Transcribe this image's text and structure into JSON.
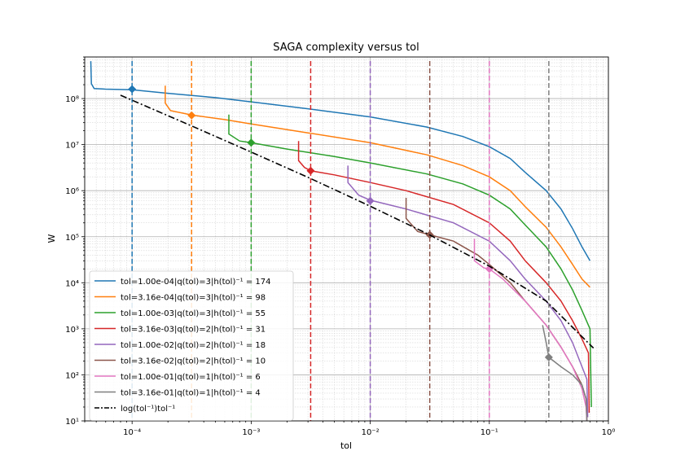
{
  "chart_data": {
    "type": "line",
    "title": "SAGA complexity versus tol",
    "xlabel": "tol",
    "ylabel": "W",
    "xscale": "log",
    "yscale": "log",
    "xlim": [
      4e-05,
      1
    ],
    "ylim": [
      10,
      800000000
    ],
    "grid": true,
    "legend_position": "lower-left",
    "x_tick_labels": [
      {
        "value": 0.0001,
        "label": "10⁻⁴"
      },
      {
        "value": 0.001,
        "label": "10⁻³"
      },
      {
        "value": 0.01,
        "label": "10⁻²"
      },
      {
        "value": 0.1,
        "label": "10⁻¹"
      },
      {
        "value": 1,
        "label": "10⁰"
      }
    ],
    "y_tick_labels": [
      {
        "value": 10,
        "label": "10¹"
      },
      {
        "value": 100,
        "label": "10²"
      },
      {
        "value": 1000,
        "label": "10³"
      },
      {
        "value": 10000,
        "label": "10⁴"
      },
      {
        "value": 100000,
        "label": "10⁵"
      },
      {
        "value": 1000000,
        "label": "10⁶"
      },
      {
        "value": 10000000,
        "label": "10⁷"
      },
      {
        "value": 100000000,
        "label": "10⁸"
      }
    ],
    "series": [
      {
        "name": "tol=1.00e-04|q(tol)=3|h(tol)^-1=174",
        "color": "#1f77b4",
        "tol": 0.0001,
        "marker_y": 160000000,
        "points": [
          [
            4.5e-05,
            650000000
          ],
          [
            4.55e-05,
            210000000
          ],
          [
            4.8e-05,
            165000000
          ],
          [
            6e-05,
            160000000
          ],
          [
            0.0001,
            155000000
          ],
          [
            0.0002,
            130000000
          ],
          [
            0.0005,
            105000000
          ],
          [
            0.001,
            85000000
          ],
          [
            0.003,
            60000000
          ],
          [
            0.01,
            40000000
          ],
          [
            0.03,
            24000000
          ],
          [
            0.06,
            15000000
          ],
          [
            0.1,
            9000000
          ],
          [
            0.15,
            5000000
          ],
          [
            0.2,
            2500000
          ],
          [
            0.3,
            1000000
          ],
          [
            0.4,
            400000
          ],
          [
            0.5,
            150000
          ],
          [
            0.6,
            60000
          ],
          [
            0.7,
            30000
          ]
        ]
      },
      {
        "name": "tol=3.16e-04|q(tol)=3|h(tol)^-1=98",
        "color": "#ff7f0e",
        "tol": 0.000316,
        "marker_y": 43000000,
        "points": [
          [
            0.00019,
            190000000
          ],
          [
            0.00019,
            80000000
          ],
          [
            0.00021,
            55000000
          ],
          [
            0.000316,
            44000000
          ],
          [
            0.0006,
            35000000
          ],
          [
            0.001,
            28000000
          ],
          [
            0.003,
            18000000
          ],
          [
            0.01,
            11000000
          ],
          [
            0.03,
            6000000
          ],
          [
            0.06,
            3500000
          ],
          [
            0.1,
            2000000
          ],
          [
            0.15,
            1000000
          ],
          [
            0.2,
            450000
          ],
          [
            0.3,
            160000
          ],
          [
            0.4,
            60000
          ],
          [
            0.5,
            25000
          ],
          [
            0.6,
            12000
          ],
          [
            0.7,
            8000
          ]
        ]
      },
      {
        "name": "tol=1.00e-03|q(tol)=3|h(tol)^-1=55",
        "color": "#2ca02c",
        "tol": 0.001,
        "marker_y": 11000000,
        "points": [
          [
            0.00065,
            45000000
          ],
          [
            0.00065,
            17000000
          ],
          [
            0.0008,
            12000000
          ],
          [
            0.001,
            11000000
          ],
          [
            0.002,
            8000000
          ],
          [
            0.005,
            5500000
          ],
          [
            0.01,
            4000000
          ],
          [
            0.03,
            2300000
          ],
          [
            0.06,
            1400000
          ],
          [
            0.1,
            800000
          ],
          [
            0.15,
            400000
          ],
          [
            0.2,
            180000
          ],
          [
            0.3,
            60000
          ],
          [
            0.4,
            20000
          ],
          [
            0.5,
            7000
          ],
          [
            0.6,
            2500
          ],
          [
            0.7,
            1000
          ],
          [
            0.72,
            20
          ]
        ]
      },
      {
        "name": "tol=3.16e-03|q(tol)=2|h(tol)^-1=31",
        "color": "#d62728",
        "tol": 0.00316,
        "marker_y": 2700000,
        "points": [
          [
            0.0025,
            12000000
          ],
          [
            0.0025,
            4500000
          ],
          [
            0.0028,
            3200000
          ],
          [
            0.00316,
            2700000
          ],
          [
            0.005,
            2200000
          ],
          [
            0.01,
            1500000
          ],
          [
            0.02,
            1000000
          ],
          [
            0.05,
            500000
          ],
          [
            0.1,
            200000
          ],
          [
            0.15,
            80000
          ],
          [
            0.2,
            30000
          ],
          [
            0.3,
            10000
          ],
          [
            0.4,
            4000
          ],
          [
            0.5,
            1500
          ],
          [
            0.6,
            600
          ],
          [
            0.68,
            300
          ],
          [
            0.69,
            15
          ]
        ]
      },
      {
        "name": "tol=1.00e-02|q(tol)=2|h(tol)^-1=18",
        "color": "#9467bd",
        "tol": 0.01,
        "marker_y": 600000,
        "points": [
          [
            0.0065,
            3500000
          ],
          [
            0.0065,
            1500000
          ],
          [
            0.008,
            800000
          ],
          [
            0.01,
            620000
          ],
          [
            0.02,
            400000
          ],
          [
            0.05,
            200000
          ],
          [
            0.1,
            80000
          ],
          [
            0.15,
            30000
          ],
          [
            0.2,
            12000
          ],
          [
            0.3,
            4000
          ],
          [
            0.4,
            1500
          ],
          [
            0.5,
            500
          ],
          [
            0.6,
            150
          ],
          [
            0.66,
            80
          ],
          [
            0.67,
            12
          ]
        ]
      },
      {
        "name": "tol=3.16e-02|q(tol)=2|h(tol)^-1=10",
        "color": "#8c564b",
        "tol": 0.0316,
        "marker_y": 110000,
        "points": [
          [
            0.02,
            700000
          ],
          [
            0.02,
            250000
          ],
          [
            0.025,
            130000
          ],
          [
            0.0316,
            110000
          ],
          [
            0.05,
            80000
          ],
          [
            0.08,
            40000
          ],
          [
            0.1,
            25000
          ],
          [
            0.15,
            10000
          ],
          [
            0.2,
            4000
          ],
          [
            0.3,
            1200
          ],
          [
            0.4,
            400
          ],
          [
            0.5,
            150
          ],
          [
            0.6,
            60
          ],
          [
            0.65,
            30
          ],
          [
            0.66,
            10
          ]
        ]
      },
      {
        "name": "tol=1.00e-01|q(tol)=1|h(tol)^-1=6",
        "color": "#e377c2",
        "tol": 0.1,
        "marker_y": 20000,
        "points": [
          [
            0.075,
            90000
          ],
          [
            0.075,
            30000
          ],
          [
            0.09,
            21000
          ],
          [
            0.1,
            20000
          ],
          [
            0.13,
            12000
          ],
          [
            0.2,
            4000
          ],
          [
            0.3,
            1200
          ],
          [
            0.4,
            400
          ],
          [
            0.5,
            150
          ],
          [
            0.6,
            50
          ],
          [
            0.65,
            20
          ],
          [
            0.66,
            10
          ]
        ]
      },
      {
        "name": "tol=3.16e-01|q(tol)=1|h(tol)^-1=4",
        "color": "#7f7f7f",
        "tol": 0.316,
        "marker_y": 240,
        "points": [
          [
            0.28,
            1200
          ],
          [
            0.3,
            500
          ],
          [
            0.316,
            240
          ],
          [
            0.4,
            150
          ],
          [
            0.5,
            100
          ],
          [
            0.6,
            60
          ],
          [
            0.65,
            30
          ],
          [
            0.66,
            10
          ]
        ]
      },
      {
        "name": "log(tol^-1)tol^-1",
        "color": "#000000",
        "dash": "dashdot",
        "reference": true,
        "points": [
          [
            8e-05,
            118000000
          ],
          [
            0.0001,
            92000000
          ],
          [
            0.0003,
            27000000
          ],
          [
            0.001,
            6900000
          ],
          [
            0.003,
            1950000
          ],
          [
            0.01,
            460000
          ],
          [
            0.03,
            117000
          ],
          [
            0.1,
            23000
          ],
          [
            0.3,
            4000
          ],
          [
            0.75,
            380
          ]
        ]
      }
    ]
  },
  "legend": {
    "entries": [
      {
        "label": "tol=1.00e-04|q(tol)=3|h(tol)⁻¹ = 174",
        "color": "#1f77b4"
      },
      {
        "label": "tol=3.16e-04|q(tol)=3|h(tol)⁻¹ = 98",
        "color": "#ff7f0e"
      },
      {
        "label": "tol=1.00e-03|q(tol)=3|h(tol)⁻¹ = 55",
        "color": "#2ca02c"
      },
      {
        "label": "tol=3.16e-03|q(tol)=2|h(tol)⁻¹ = 31",
        "color": "#d62728"
      },
      {
        "label": "tol=1.00e-02|q(tol)=2|h(tol)⁻¹ = 18",
        "color": "#9467bd"
      },
      {
        "label": "tol=3.16e-02|q(tol)=2|h(tol)⁻¹ = 10",
        "color": "#8c564b"
      },
      {
        "label": "tol=1.00e-01|q(tol)=1|h(tol)⁻¹ = 6",
        "color": "#e377c2"
      },
      {
        "label": "tol=3.16e-01|q(tol)=1|h(tol)⁻¹ = 4",
        "color": "#7f7f7f"
      },
      {
        "label": "log(tol⁻¹)tol⁻¹",
        "color": "#000000",
        "dash": "dashdot"
      }
    ]
  }
}
